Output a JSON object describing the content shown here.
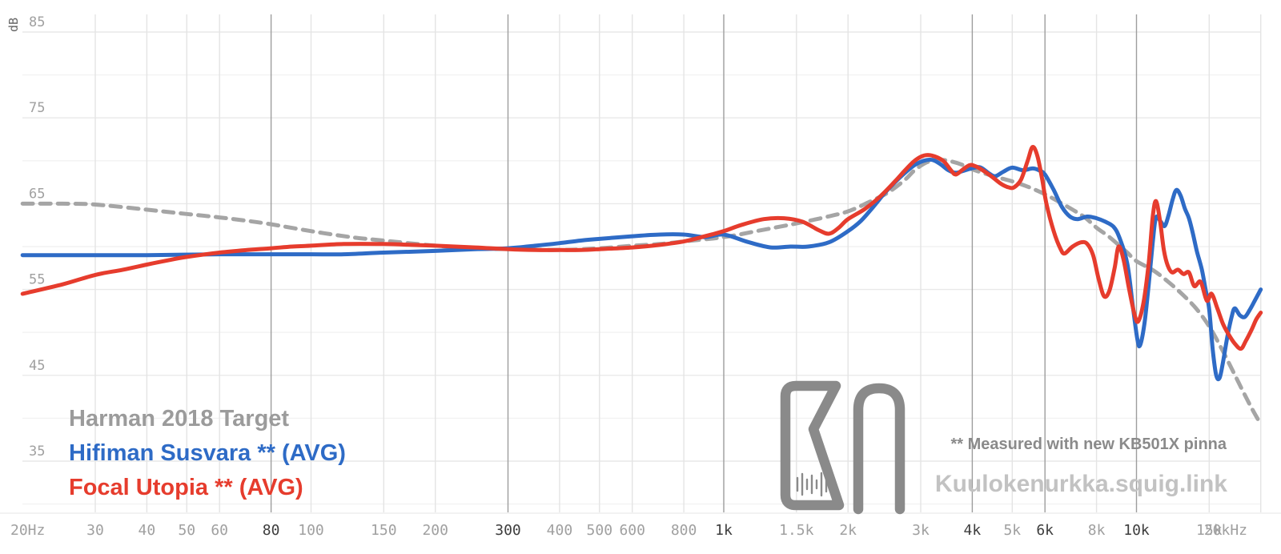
{
  "chart_data": {
    "type": "line",
    "title": "",
    "y_label": "dB",
    "x_scale": "log",
    "x_range": [
      20,
      20000
    ],
    "y_range": [
      30,
      87
    ],
    "y_ticks": [
      85,
      75,
      65,
      55,
      45,
      35
    ],
    "y_minor_step": 5,
    "grid": "on",
    "legend_position": "bottom-left",
    "x_ticks": [
      {
        "f": 20,
        "label": "20Hz",
        "dark": false,
        "line": false
      },
      {
        "f": 30,
        "label": "30",
        "dark": false
      },
      {
        "f": 40,
        "label": "40",
        "dark": false
      },
      {
        "f": 50,
        "label": "50",
        "dark": false
      },
      {
        "f": 60,
        "label": "60",
        "dark": false
      },
      {
        "f": 80,
        "label": "80",
        "dark": true
      },
      {
        "f": 100,
        "label": "100",
        "dark": false
      },
      {
        "f": 150,
        "label": "150",
        "dark": false
      },
      {
        "f": 200,
        "label": "200",
        "dark": false
      },
      {
        "f": 300,
        "label": "300",
        "dark": true
      },
      {
        "f": 400,
        "label": "400",
        "dark": false
      },
      {
        "f": 500,
        "label": "500",
        "dark": false
      },
      {
        "f": 600,
        "label": "600",
        "dark": false
      },
      {
        "f": 800,
        "label": "800",
        "dark": false
      },
      {
        "f": 1000,
        "label": "1k",
        "dark": true
      },
      {
        "f": 1500,
        "label": "1.5k",
        "dark": false
      },
      {
        "f": 2000,
        "label": "2k",
        "dark": false
      },
      {
        "f": 3000,
        "label": "3k",
        "dark": false
      },
      {
        "f": 4000,
        "label": "4k",
        "dark": true
      },
      {
        "f": 5000,
        "label": "5k",
        "dark": false
      },
      {
        "f": 6000,
        "label": "6k",
        "dark": true
      },
      {
        "f": 8000,
        "label": "8k",
        "dark": false
      },
      {
        "f": 10000,
        "label": "10k",
        "dark": true
      },
      {
        "f": 15000,
        "label": "15k",
        "dark": false
      },
      {
        "f": 20000,
        "label": "20kHz",
        "dark": false
      }
    ],
    "series": [
      {
        "name": "Harman 2018 Target",
        "color": "#a5a5a5",
        "legend_color": "#9b9b9b",
        "dashed": true,
        "points": [
          [
            20,
            65
          ],
          [
            25,
            65
          ],
          [
            30,
            64.9
          ],
          [
            40,
            64.3
          ],
          [
            50,
            63.8
          ],
          [
            60,
            63.4
          ],
          [
            70,
            63
          ],
          [
            80,
            62.6
          ],
          [
            100,
            61.8
          ],
          [
            125,
            61.1
          ],
          [
            150,
            60.7
          ],
          [
            200,
            60.1
          ],
          [
            250,
            59.8
          ],
          [
            300,
            59.7
          ],
          [
            400,
            59.6
          ],
          [
            500,
            59.8
          ],
          [
            600,
            60.1
          ],
          [
            700,
            60.3
          ],
          [
            800,
            60.6
          ],
          [
            1000,
            61.1
          ],
          [
            1200,
            61.8
          ],
          [
            1500,
            62.7
          ],
          [
            1750,
            63.4
          ],
          [
            2000,
            64.1
          ],
          [
            2250,
            65.2
          ],
          [
            2500,
            66.3
          ],
          [
            2750,
            67.8
          ],
          [
            2900,
            68.9
          ],
          [
            3100,
            69.8
          ],
          [
            3300,
            70.1
          ],
          [
            3500,
            70
          ],
          [
            3750,
            69.6
          ],
          [
            4000,
            69
          ],
          [
            4500,
            68.2
          ],
          [
            5000,
            67.6
          ],
          [
            5500,
            66.9
          ],
          [
            6000,
            66.1
          ],
          [
            6500,
            65.2
          ],
          [
            7000,
            64.3
          ],
          [
            7500,
            63.4
          ],
          [
            8000,
            62.2
          ],
          [
            8500,
            61.3
          ],
          [
            9000,
            60.3
          ],
          [
            9500,
            59.3
          ],
          [
            10000,
            58.3
          ],
          [
            11000,
            57.2
          ],
          [
            12000,
            55.8
          ],
          [
            13000,
            54.3
          ],
          [
            14000,
            52.7
          ],
          [
            15000,
            50.7
          ],
          [
            16000,
            48.3
          ],
          [
            17000,
            45.8
          ],
          [
            18000,
            43.4
          ],
          [
            19000,
            41.2
          ],
          [
            20000,
            39.3
          ]
        ]
      },
      {
        "name": "Hifiman Susvara ** (AVG)",
        "color": "#2e6bc6",
        "legend_color": "#2e6bc6",
        "dashed": false,
        "points": [
          [
            20,
            59
          ],
          [
            30,
            59
          ],
          [
            40,
            59
          ],
          [
            60,
            59.1
          ],
          [
            80,
            59.1
          ],
          [
            100,
            59.1
          ],
          [
            120,
            59.1
          ],
          [
            150,
            59.3
          ],
          [
            200,
            59.5
          ],
          [
            250,
            59.7
          ],
          [
            300,
            59.8
          ],
          [
            350,
            60.1
          ],
          [
            400,
            60.4
          ],
          [
            450,
            60.7
          ],
          [
            500,
            60.9
          ],
          [
            600,
            61.2
          ],
          [
            700,
            61.4
          ],
          [
            800,
            61.4
          ],
          [
            900,
            61.1
          ],
          [
            1000,
            61.4
          ],
          [
            1150,
            60.5
          ],
          [
            1300,
            59.9
          ],
          [
            1450,
            60
          ],
          [
            1600,
            60
          ],
          [
            1800,
            60.5
          ],
          [
            2000,
            61.8
          ],
          [
            2150,
            63
          ],
          [
            2300,
            64.6
          ],
          [
            2450,
            66.2
          ],
          [
            2600,
            67.5
          ],
          [
            2750,
            68.6
          ],
          [
            2900,
            69.5
          ],
          [
            3050,
            70
          ],
          [
            3200,
            70.1
          ],
          [
            3350,
            69.6
          ],
          [
            3500,
            68.9
          ],
          [
            3650,
            68.6
          ],
          [
            3850,
            68.9
          ],
          [
            4050,
            69.2
          ],
          [
            4200,
            69.2
          ],
          [
            4400,
            68.5
          ],
          [
            4550,
            68.2
          ],
          [
            4750,
            68.7
          ],
          [
            5000,
            69.2
          ],
          [
            5300,
            68.9
          ],
          [
            5600,
            69.1
          ],
          [
            5800,
            68.9
          ],
          [
            6000,
            68.4
          ],
          [
            6300,
            66.6
          ],
          [
            6600,
            64.6
          ],
          [
            6900,
            63.5
          ],
          [
            7200,
            63.2
          ],
          [
            7600,
            63.5
          ],
          [
            8000,
            63.3
          ],
          [
            8400,
            62.9
          ],
          [
            8800,
            62.3
          ],
          [
            9100,
            61
          ],
          [
            9500,
            58
          ],
          [
            9800,
            53
          ],
          [
            10050,
            49.2
          ],
          [
            10200,
            48.5
          ],
          [
            10450,
            51
          ],
          [
            10700,
            55.5
          ],
          [
            10950,
            60.5
          ],
          [
            11150,
            63.4
          ],
          [
            11450,
            62.9
          ],
          [
            11700,
            62.4
          ],
          [
            11950,
            63.6
          ],
          [
            12250,
            65.6
          ],
          [
            12500,
            66.6
          ],
          [
            12800,
            65.9
          ],
          [
            13100,
            64.4
          ],
          [
            13400,
            63.3
          ],
          [
            13700,
            61.5
          ],
          [
            14000,
            59.5
          ],
          [
            14400,
            57.3
          ],
          [
            14700,
            55
          ],
          [
            15000,
            52.7
          ],
          [
            15300,
            48
          ],
          [
            15600,
            45
          ],
          [
            15900,
            44.7
          ],
          [
            16200,
            46.5
          ],
          [
            16600,
            49.5
          ],
          [
            17000,
            51.8
          ],
          [
            17300,
            52.8
          ],
          [
            17800,
            52
          ],
          [
            18300,
            51.8
          ],
          [
            18800,
            52.6
          ],
          [
            19300,
            53.6
          ],
          [
            20000,
            55
          ]
        ]
      },
      {
        "name": "Focal Utopia ** (AVG)",
        "color": "#e63c2d",
        "legend_color": "#e63c2d",
        "dashed": false,
        "points": [
          [
            20,
            54.5
          ],
          [
            25,
            55.6
          ],
          [
            30,
            56.7
          ],
          [
            35,
            57.3
          ],
          [
            40,
            57.9
          ],
          [
            45,
            58.4
          ],
          [
            50,
            58.8
          ],
          [
            60,
            59.3
          ],
          [
            70,
            59.6
          ],
          [
            80,
            59.8
          ],
          [
            90,
            60
          ],
          [
            100,
            60.1
          ],
          [
            120,
            60.3
          ],
          [
            150,
            60.3
          ],
          [
            175,
            60.2
          ],
          [
            200,
            60.1
          ],
          [
            250,
            59.9
          ],
          [
            300,
            59.7
          ],
          [
            350,
            59.6
          ],
          [
            400,
            59.6
          ],
          [
            450,
            59.6
          ],
          [
            500,
            59.7
          ],
          [
            600,
            59.9
          ],
          [
            700,
            60.2
          ],
          [
            800,
            60.6
          ],
          [
            900,
            61.2
          ],
          [
            1000,
            61.8
          ],
          [
            1100,
            62.5
          ],
          [
            1250,
            63.2
          ],
          [
            1400,
            63.3
          ],
          [
            1550,
            62.9
          ],
          [
            1700,
            61.9
          ],
          [
            1800,
            61.5
          ],
          [
            1900,
            62.2
          ],
          [
            2000,
            63.2
          ],
          [
            2200,
            64.4
          ],
          [
            2400,
            65.9
          ],
          [
            2600,
            67.6
          ],
          [
            2750,
            68.9
          ],
          [
            2900,
            70
          ],
          [
            3050,
            70.6
          ],
          [
            3200,
            70.6
          ],
          [
            3400,
            70
          ],
          [
            3550,
            68.9
          ],
          [
            3650,
            68.4
          ],
          [
            3800,
            69
          ],
          [
            3950,
            69.5
          ],
          [
            4100,
            69.3
          ],
          [
            4300,
            68.7
          ],
          [
            4500,
            68
          ],
          [
            4700,
            67.3
          ],
          [
            4900,
            66.9
          ],
          [
            5050,
            66.9
          ],
          [
            5250,
            67.8
          ],
          [
            5450,
            70
          ],
          [
            5600,
            71.6
          ],
          [
            5750,
            70.6
          ],
          [
            5900,
            68
          ],
          [
            6050,
            65
          ],
          [
            6300,
            61.8
          ],
          [
            6550,
            59.7
          ],
          [
            6700,
            59.2
          ],
          [
            7000,
            60
          ],
          [
            7350,
            60.5
          ],
          [
            7600,
            60.3
          ],
          [
            7850,
            59
          ],
          [
            8100,
            56.2
          ],
          [
            8350,
            54.2
          ],
          [
            8600,
            54.9
          ],
          [
            8850,
            57.5
          ],
          [
            9050,
            60
          ],
          [
            9300,
            58.5
          ],
          [
            9600,
            55
          ],
          [
            9900,
            52
          ],
          [
            10100,
            51.3
          ],
          [
            10400,
            53.5
          ],
          [
            10700,
            58
          ],
          [
            10950,
            63.5
          ],
          [
            11150,
            65.3
          ],
          [
            11400,
            63
          ],
          [
            11650,
            59.6
          ],
          [
            11900,
            57.8
          ],
          [
            12200,
            57
          ],
          [
            12600,
            57.3
          ],
          [
            13000,
            56.8
          ],
          [
            13400,
            57
          ],
          [
            13800,
            55.4
          ],
          [
            14300,
            55.9
          ],
          [
            14800,
            53.7
          ],
          [
            15200,
            54.5
          ],
          [
            15700,
            52.8
          ],
          [
            16200,
            51
          ],
          [
            16700,
            49.8
          ],
          [
            17300,
            48.7
          ],
          [
            17900,
            48.1
          ],
          [
            18400,
            49
          ],
          [
            19000,
            50.3
          ],
          [
            19500,
            51.5
          ],
          [
            20000,
            52.3
          ]
        ]
      }
    ]
  },
  "watermark": {
    "note": "** Measured with new KB501X pinna",
    "site": "Kuulokenurkka.squig.link"
  },
  "colors": {
    "grid_light": "#e4e4e4",
    "grid_dark": "#9d9d9d",
    "hgrid_major": "#e9e9e9",
    "hgrid_minor": "#f2f2f2",
    "tick_label": "#a0a0a0",
    "tick_label_dark": "#3d3d3d",
    "logo_gray": "#8a8a8a"
  }
}
